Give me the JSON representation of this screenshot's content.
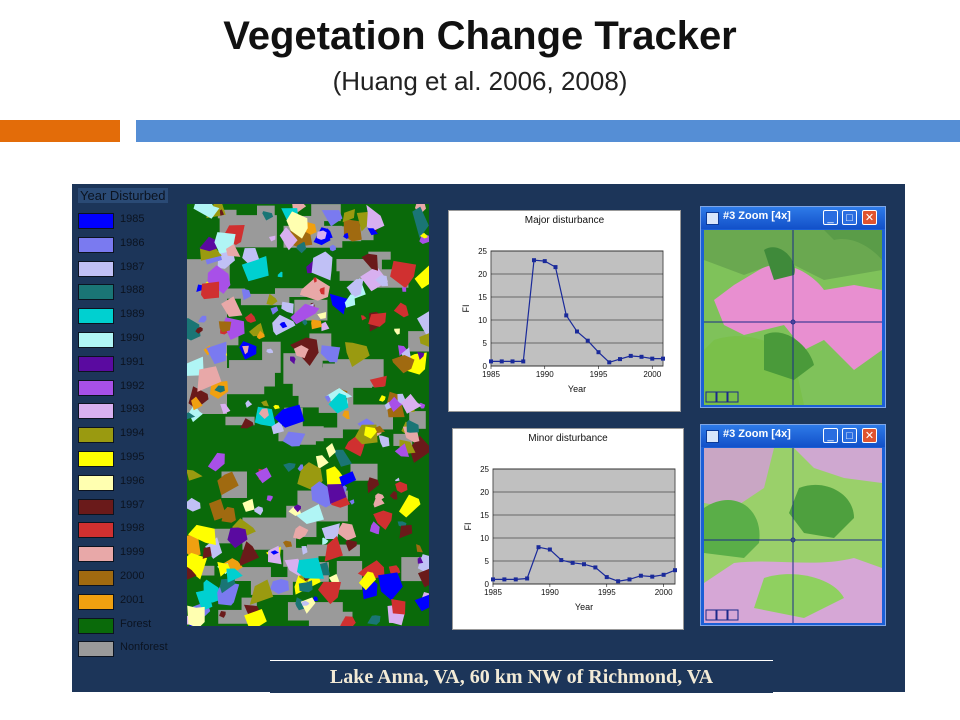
{
  "header": {
    "title": "Vegetation Change Tracker",
    "subtitle": "(Huang et al. 2006, 2008)",
    "orange": "#e36c09",
    "blue": "#558ed5"
  },
  "legend": {
    "title": "Year Disturbed",
    "items": [
      {
        "label": "1985",
        "color": "#0000ff"
      },
      {
        "label": "1986",
        "color": "#7a7af0"
      },
      {
        "label": "1987",
        "color": "#c0c0f5"
      },
      {
        "label": "1988",
        "color": "#1a7575"
      },
      {
        "label": "1989",
        "color": "#00d0d0"
      },
      {
        "label": "1990",
        "color": "#b0f5f5"
      },
      {
        "label": "1991",
        "color": "#5a0aa0"
      },
      {
        "label": "1992",
        "color": "#a850e8"
      },
      {
        "label": "1993",
        "color": "#d8b0f0"
      },
      {
        "label": "1994",
        "color": "#9a9a10"
      },
      {
        "label": "1995",
        "color": "#ffff00"
      },
      {
        "label": "1996",
        "color": "#ffffb0"
      },
      {
        "label": "1997",
        "color": "#6a1a1a"
      },
      {
        "label": "1998",
        "color": "#d03030"
      },
      {
        "label": "1999",
        "color": "#e8a8a8"
      },
      {
        "label": "2000",
        "color": "#a06a10"
      },
      {
        "label": "2001",
        "color": "#f0a010"
      },
      {
        "label": "Forest",
        "color": "#0a6a0a"
      },
      {
        "label": "Nonforest",
        "color": "#9a9a9a"
      }
    ]
  },
  "map_caption": "Lake Anna, VA, 60 km NW of Richmond, VA",
  "zoom_windows": [
    {
      "title": "#3 Zoom [4x]",
      "minimize": "_",
      "maximize": "□",
      "close": "✕"
    },
    {
      "title": "#3 Zoom [4x]",
      "minimize": "_",
      "maximize": "□",
      "close": "✕"
    }
  ],
  "chart_data": [
    {
      "type": "line",
      "title": "Major disturbance",
      "xlabel": "Year",
      "ylabel": "FI",
      "x": [
        1985,
        1986,
        1987,
        1988,
        1989,
        1990,
        1991,
        1992,
        1993,
        1994,
        1995,
        1996,
        1997,
        1998,
        1999,
        2000,
        2001
      ],
      "y": [
        1,
        1,
        1,
        1,
        23,
        22.8,
        21.5,
        11,
        7.5,
        5.5,
        3,
        0.8,
        1.5,
        2.2,
        2,
        1.6,
        1.6
      ],
      "xticks": [
        1985,
        1990,
        1995,
        2000
      ],
      "yticks": [
        0,
        5,
        10,
        15,
        20,
        25
      ],
      "xlim": [
        1985,
        2001
      ],
      "ylim": [
        0,
        25
      ],
      "grid": true
    },
    {
      "type": "line",
      "title": "Minor disturbance",
      "xlabel": "Year",
      "ylabel": "FI",
      "x": [
        1985,
        1986,
        1987,
        1988,
        1989,
        1990,
        1991,
        1992,
        1993,
        1994,
        1995,
        1996,
        1997,
        1998,
        1999,
        2000,
        2001
      ],
      "y": [
        1,
        1,
        1,
        1.2,
        8,
        7.5,
        5.2,
        4.6,
        4.3,
        3.6,
        1.5,
        0.6,
        1,
        1.8,
        1.6,
        2,
        3
      ],
      "xticks": [
        1985,
        1990,
        1995,
        2000
      ],
      "yticks": [
        0,
        5,
        10,
        15,
        20,
        25
      ],
      "xlim": [
        1985,
        2001
      ],
      "ylim": [
        0,
        25
      ],
      "grid": true
    }
  ]
}
